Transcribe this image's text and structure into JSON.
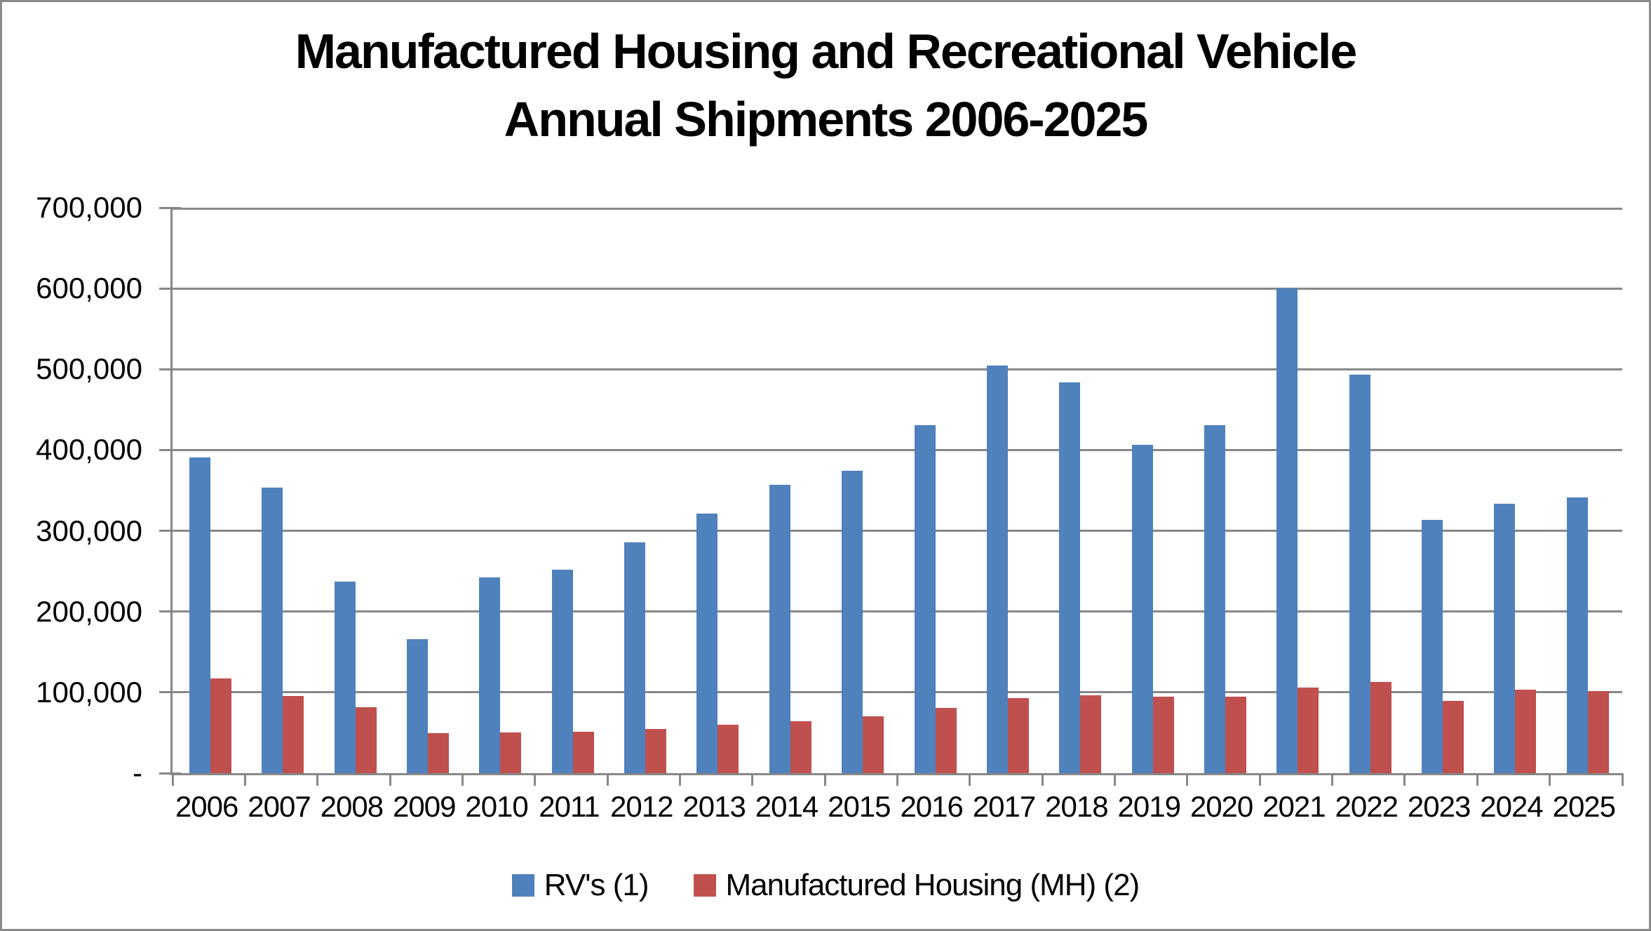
{
  "title": {
    "line1": "Manufactured Housing and Recreational Vehicle",
    "line2": "Annual Shipments 2006-2025"
  },
  "chart_data": {
    "type": "bar",
    "title": "Manufactured Housing and Recreational Vehicle Annual Shipments 2006-2025",
    "categories": [
      "2006",
      "2007",
      "2008",
      "2009",
      "2010",
      "2011",
      "2012",
      "2013",
      "2014",
      "2015",
      "2016",
      "2017",
      "2018",
      "2019",
      "2020",
      "2021",
      "2022",
      "2023",
      "2024",
      "2025"
    ],
    "series": [
      {
        "name": "RV's (1)",
        "color": "#4F81BD",
        "values": [
          390500,
          353400,
          237000,
          165700,
          242300,
          252300,
          285700,
          321100,
          356700,
          374200,
          430700,
          504600,
          483700,
          406100,
          430400,
          600200,
          493300,
          313200,
          333700,
          341000
        ]
      },
      {
        "name": "Manufactured Housing (MH) (2)",
        "color": "#C0504D",
        "values": [
          117300,
          95700,
          81900,
          49800,
          50000,
          51600,
          54900,
          60200,
          64300,
          70500,
          81100,
          92900,
          96600,
          94600,
          94400,
          105800,
          112900,
          89200,
          103300,
          101500
        ]
      }
    ],
    "ylim": [
      0,
      700000
    ],
    "y_tick_interval": 100000,
    "y_tick_labels": [
      "700,000",
      "600,000",
      "500,000",
      "400,000",
      "300,000",
      "200,000",
      "100,000",
      "-"
    ],
    "grid": "horizontal",
    "legend_position": "bottom",
    "colors": {
      "gridline": "#878787",
      "axis": "#878787",
      "text": "#000000",
      "background": "#FFFFFF",
      "frame_border": "#8A8A8A"
    }
  }
}
